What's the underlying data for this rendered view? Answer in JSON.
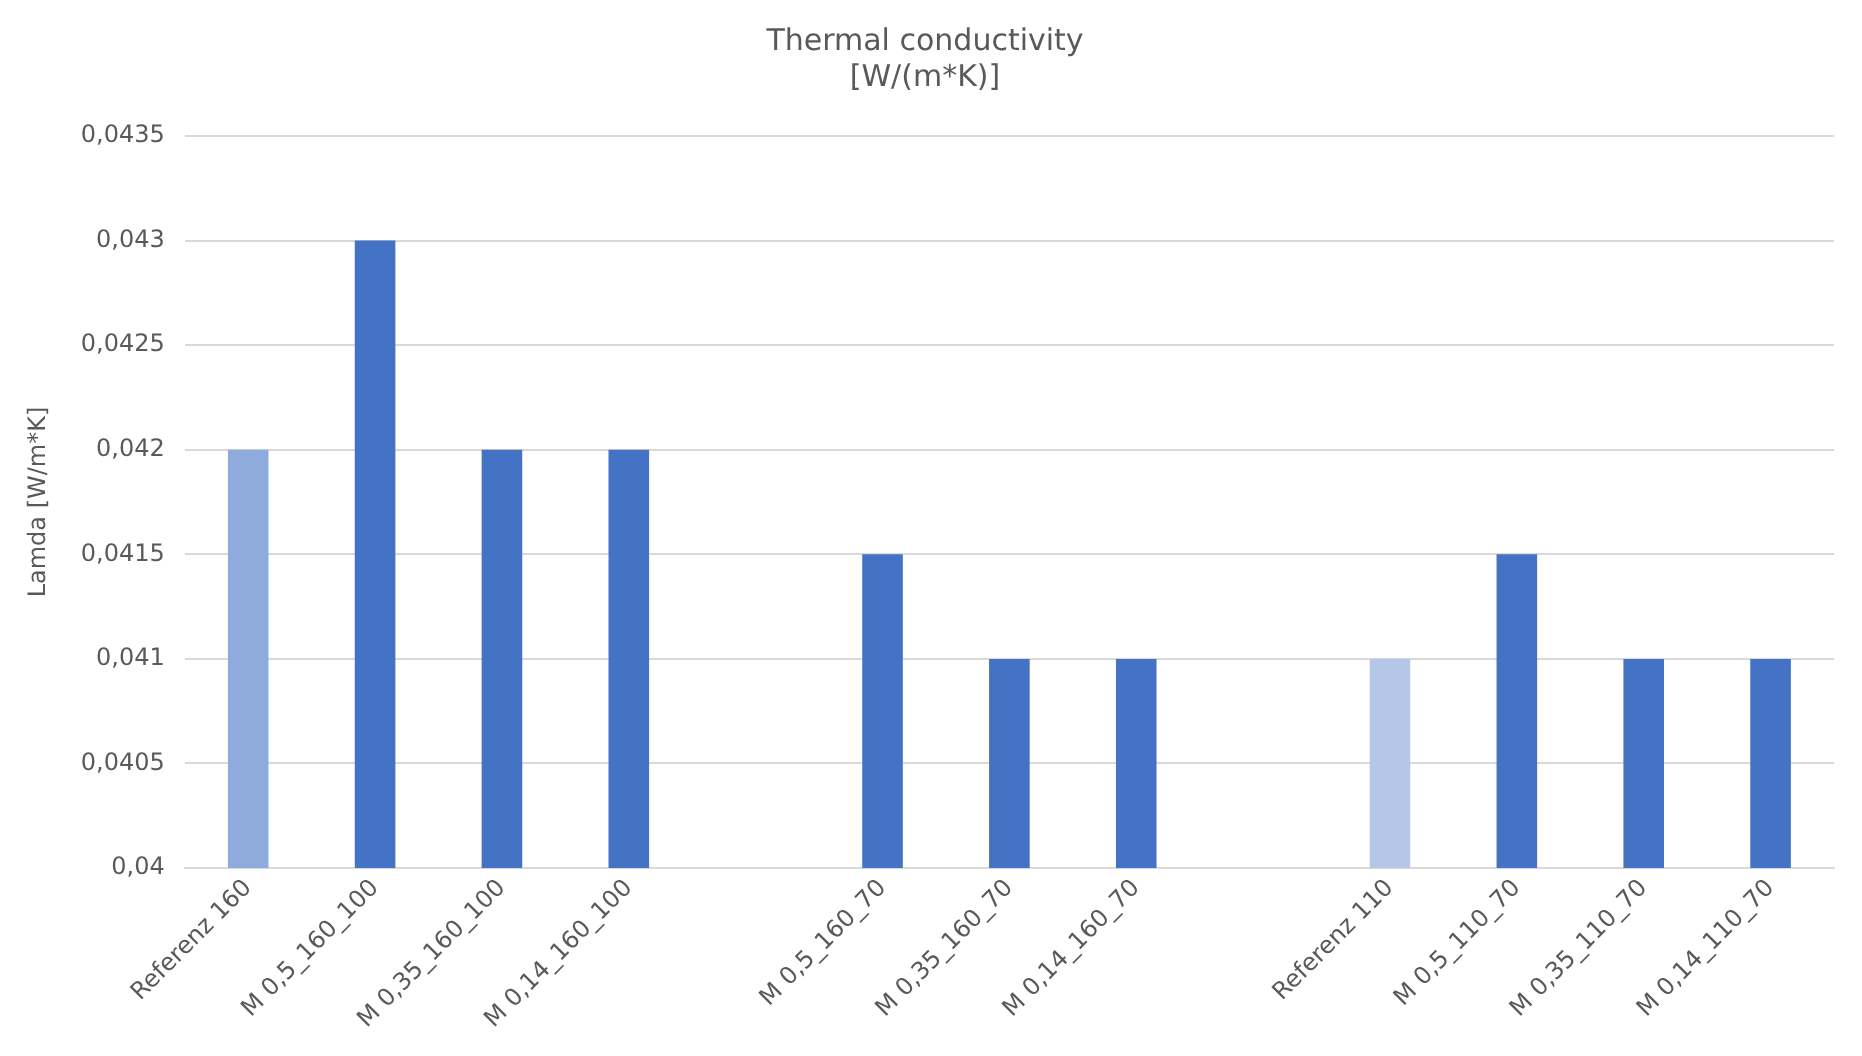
{
  "chart_data": {
    "type": "bar",
    "title": "Thermal conductivity\n[W/(m*K)]",
    "ylabel": "Lamda [W/m*K]",
    "categories": [
      "Referenz 160",
      "M 0,5_160_100",
      "M 0,35_160_100",
      "M 0,14_160_100",
      null,
      "M 0,5_160_70",
      "M 0,35_160_70",
      "M 0,14_160_70",
      null,
      "Referenz 110",
      "M 0,5_110_70",
      "M 0,35_110_70",
      "M 0,14_110_70"
    ],
    "values": [
      0.042,
      0.043,
      0.042,
      0.042,
      null,
      0.0415,
      0.041,
      0.041,
      null,
      0.041,
      0.0415,
      0.041,
      0.041
    ],
    "colors": [
      "#8faadc",
      "#4472c4",
      "#4472c4",
      "#4472c4",
      "#4472c4",
      "#4472c4",
      "#4472c4",
      "#4472c4",
      "#4472c4",
      "#b4c7e7",
      "#4472c4",
      "#4472c4",
      "#4472c4"
    ],
    "ylim": [
      0.04,
      0.0435
    ],
    "yticks": [
      {
        "value": 0.04,
        "label": "0,04"
      },
      {
        "value": 0.0405,
        "label": "0,0405"
      },
      {
        "value": 0.041,
        "label": "0,041"
      },
      {
        "value": 0.0415,
        "label": "0,0415"
      },
      {
        "value": 0.042,
        "label": "0,042"
      },
      {
        "value": 0.0425,
        "label": "0,0425"
      },
      {
        "value": 0.043,
        "label": "0,043"
      },
      {
        "value": 0.0435,
        "label": "0,0435"
      }
    ],
    "grid": "y",
    "legend": false
  }
}
